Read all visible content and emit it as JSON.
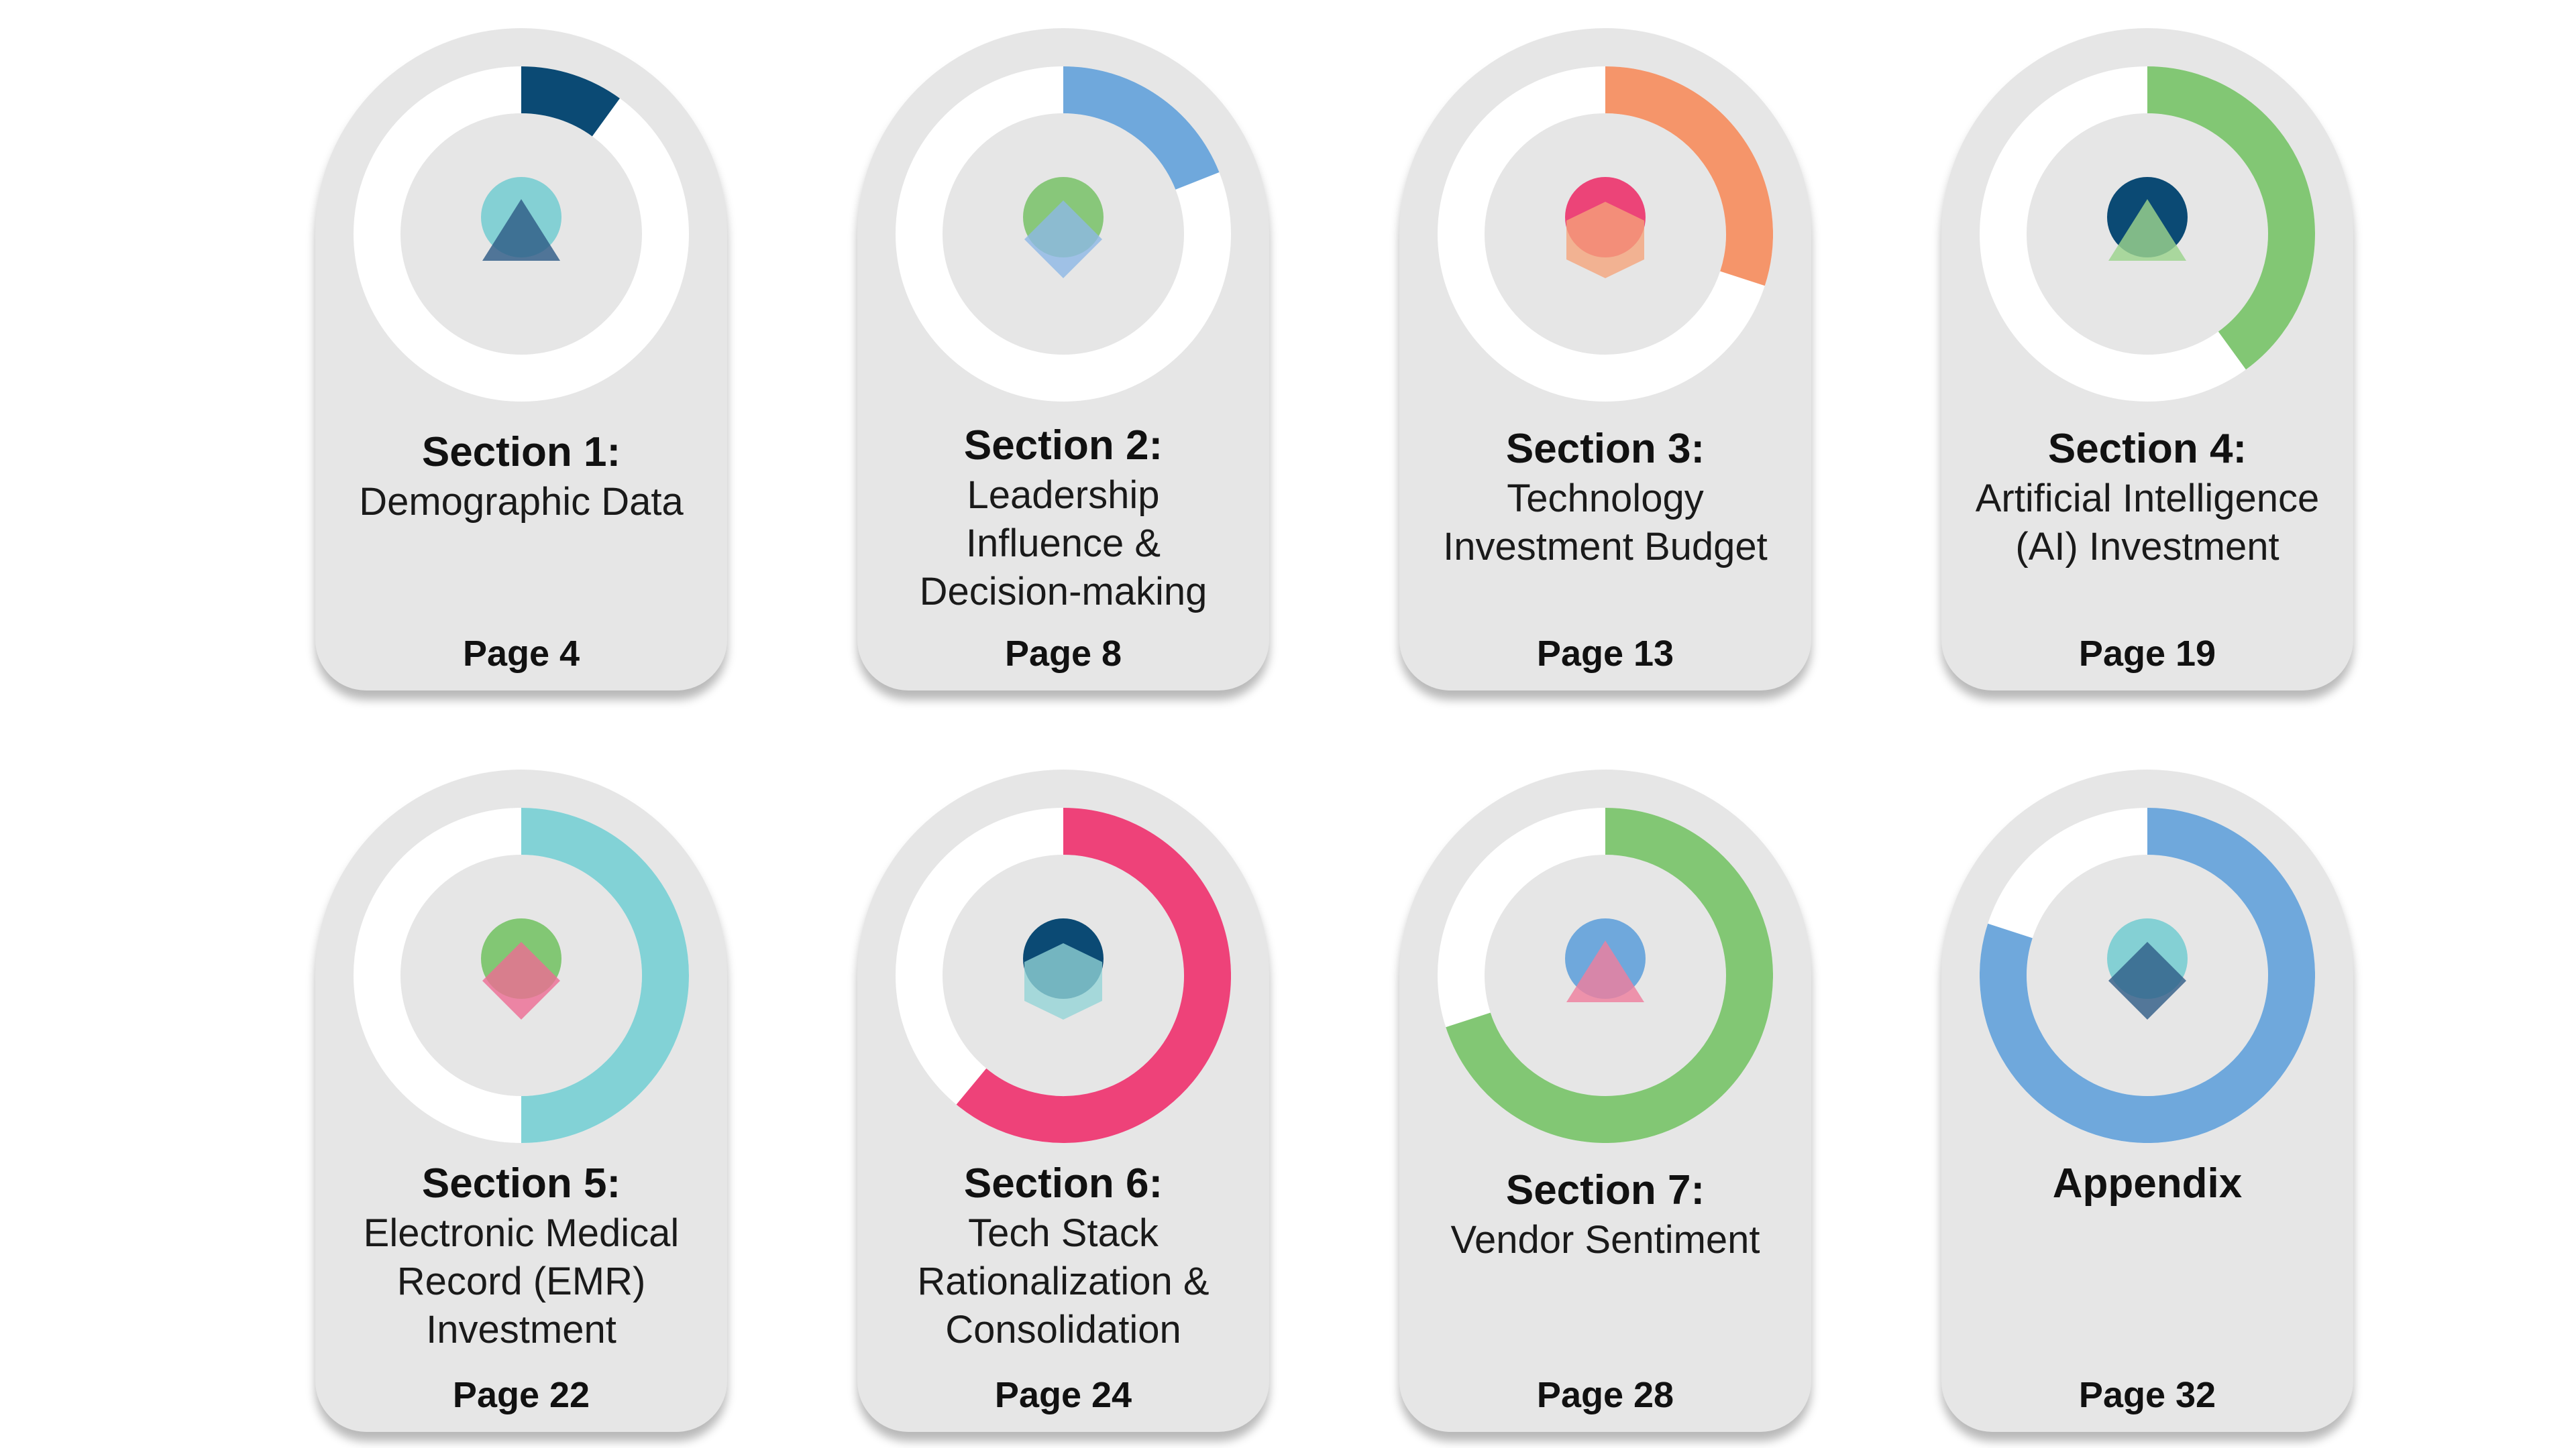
{
  "cards": [
    {
      "title": "Section 1:",
      "subtitle": "Demographic Data",
      "page": "Page 4",
      "color": "#0b4a74",
      "progress": 0.1,
      "motif": {
        "circle": "#84d0d4",
        "shape": "triangle",
        "shape_color": "#2e5b86"
      }
    },
    {
      "title": "Section 2:",
      "subtitle": "Leadership Influence & Decision-making",
      "page": "Page 8",
      "color": "#6fa8dc",
      "progress": 0.19,
      "motif": {
        "circle": "#88c77a",
        "shape": "diamond",
        "shape_color": "#8db8e6"
      }
    },
    {
      "title": "Section 3:",
      "subtitle": "Technology Investment Budget",
      "page": "Page 13",
      "color": "#f5956a",
      "progress": 0.3,
      "motif": {
        "circle": "#ec4478",
        "shape": "hexagon",
        "shape_color": "#f5a37a"
      }
    },
    {
      "title": "Section 4:",
      "subtitle": "Artificial Intelligence (AI) Investment",
      "page": "Page 19",
      "color": "#82c774",
      "progress": 0.4,
      "motif": {
        "circle": "#0b4a74",
        "shape": "triangle",
        "shape_color": "#9bd38c"
      }
    },
    {
      "title": "Section 5:",
      "subtitle": "Electronic Medical Record (EMR) Investment",
      "page": "Page 22",
      "color": "#82d2d6",
      "progress": 0.5,
      "motif": {
        "circle": "#82c774",
        "shape": "diamond",
        "shape_color": "#ee6c94"
      }
    },
    {
      "title": "Section 6:",
      "subtitle": "Tech Stack Rationalization & Consolidation",
      "page": "Page 24",
      "color": "#ee4279",
      "progress": 0.61,
      "motif": {
        "circle": "#0b4a74",
        "shape": "hexagon",
        "shape_color": "#92d3d6"
      }
    },
    {
      "title": "Section 7:",
      "subtitle": "Vendor Sentiment",
      "page": "Page 28",
      "color": "#82c774",
      "progress": 0.7,
      "motif": {
        "circle": "#6fa8dc",
        "shape": "triangle",
        "shape_color": "#ee7f9e"
      }
    },
    {
      "title": "Appendix",
      "subtitle": "",
      "page": "Page 32",
      "color": "#6fa8dc",
      "progress": 0.8,
      "motif": {
        "circle": "#84d0d4",
        "shape": "diamond",
        "shape_color": "#2e5b86"
      }
    }
  ]
}
